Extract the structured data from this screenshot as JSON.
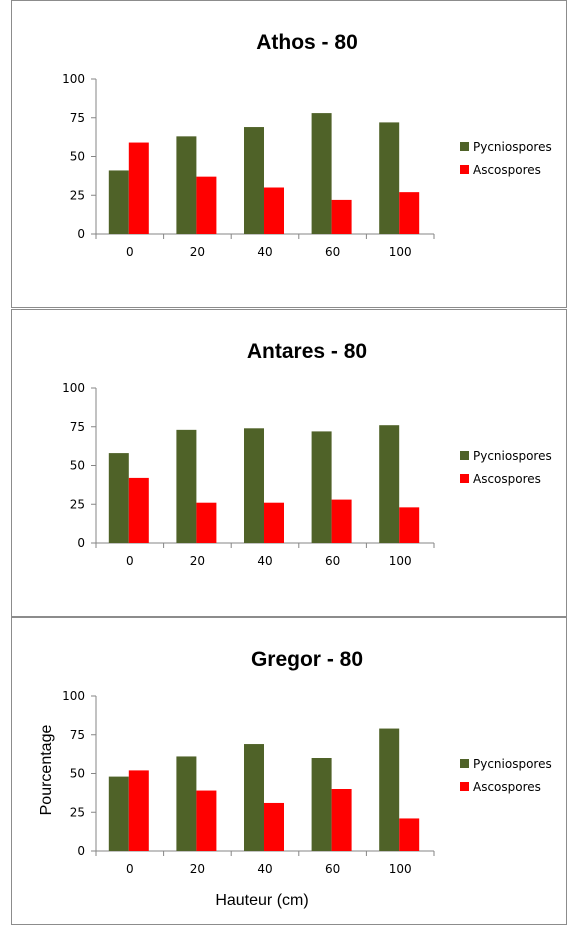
{
  "colors": {
    "pycniospores": "#4f6228",
    "ascospores": "#ff0000"
  },
  "xlabel": "Hauteur (cm)",
  "ylabel": "Pourcentage",
  "chart_data": [
    {
      "type": "bar",
      "title": "Athos - 80",
      "categories": [
        "0",
        "20",
        "40",
        "60",
        "100"
      ],
      "series": [
        {
          "name": "Pycniospores",
          "values": [
            41,
            63,
            69,
            78,
            72
          ]
        },
        {
          "name": "Ascospores",
          "values": [
            59,
            37,
            30,
            22,
            27
          ]
        }
      ],
      "ylim": [
        0,
        100
      ],
      "yticks": [
        "0",
        "25",
        "50",
        "75",
        "100"
      ],
      "legend": "right",
      "grid": false
    },
    {
      "type": "bar",
      "title": "Antares - 80",
      "categories": [
        "0",
        "20",
        "40",
        "60",
        "100"
      ],
      "series": [
        {
          "name": "Pycniospores",
          "values": [
            58,
            73,
            74,
            72,
            76
          ]
        },
        {
          "name": "Ascospores",
          "values": [
            42,
            26,
            26,
            28,
            23
          ]
        }
      ],
      "ylim": [
        0,
        100
      ],
      "yticks": [
        "0",
        "25",
        "50",
        "75",
        "100"
      ],
      "legend": "right",
      "grid": false
    },
    {
      "type": "bar",
      "title": "Gregor - 80",
      "categories": [
        "0",
        "20",
        "40",
        "60",
        "100"
      ],
      "series": [
        {
          "name": "Pycniospores",
          "values": [
            48,
            61,
            69,
            60,
            79
          ]
        },
        {
          "name": "Ascospores",
          "values": [
            52,
            39,
            31,
            40,
            21
          ]
        }
      ],
      "ylim": [
        0,
        100
      ],
      "yticks": [
        "0",
        "25",
        "50",
        "75",
        "100"
      ],
      "legend": "right",
      "grid": false
    }
  ]
}
